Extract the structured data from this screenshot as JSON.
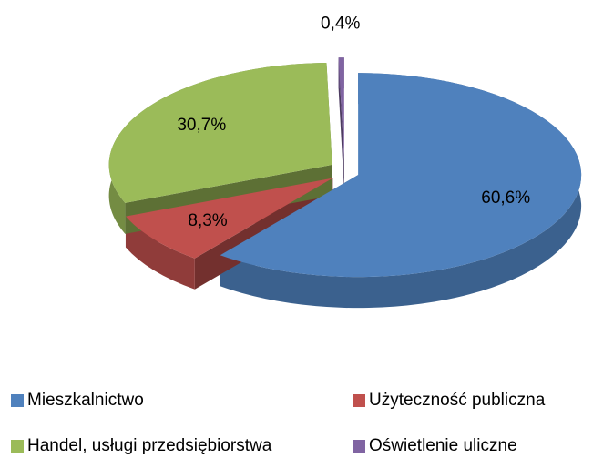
{
  "chart_data": {
    "type": "pie",
    "categories": [
      "Mieszkalnictwo",
      "Użyteczność publiczna",
      "Handel, usługi przedsiębiorstwa",
      "Oświetlenie uliczne"
    ],
    "values": [
      60.6,
      8.3,
      30.7,
      0.4
    ],
    "value_labels": [
      "60,6%",
      "8,3%",
      "30,7%",
      "0,4%"
    ],
    "colors": [
      "#4f81bd",
      "#c0504d",
      "#9bbb59",
      "#8064a2"
    ],
    "legend": "bottom"
  }
}
